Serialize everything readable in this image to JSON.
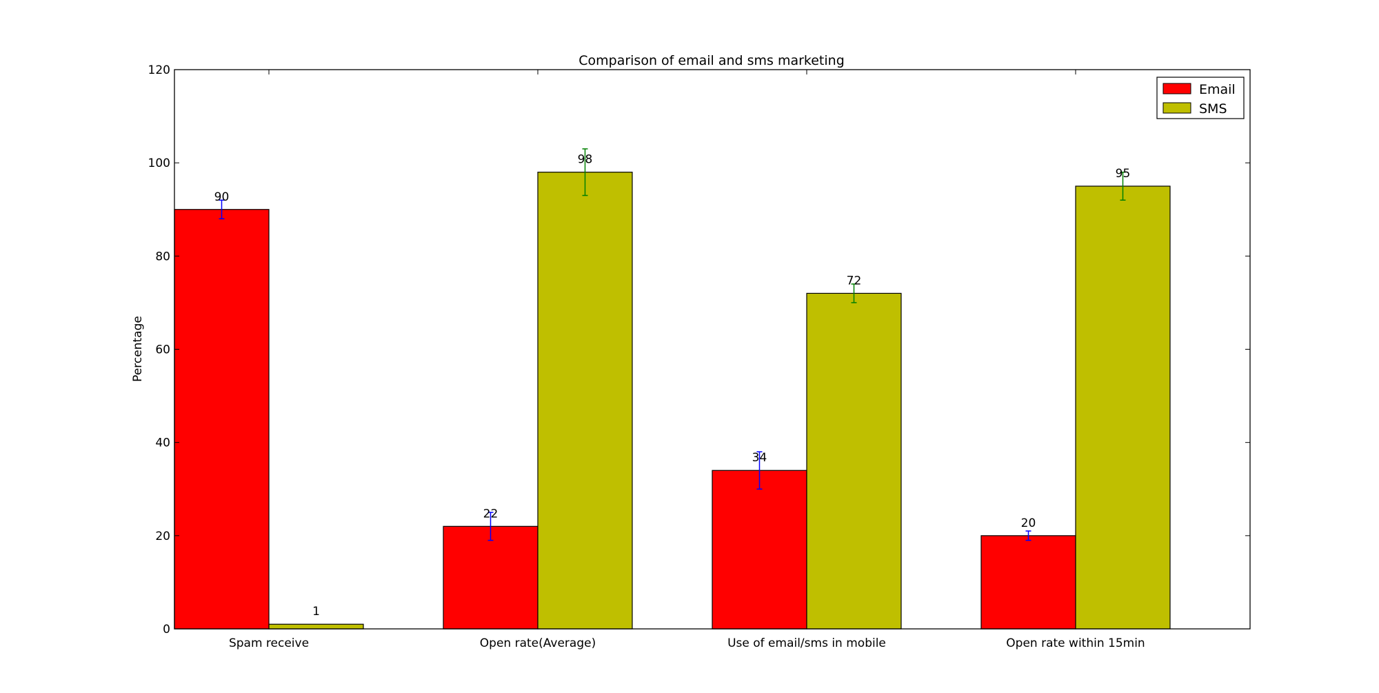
{
  "chart_data": {
    "type": "bar",
    "title": "Comparison of email and sms marketing",
    "xlabel": "",
    "ylabel": "Percentage",
    "ylim": [
      0,
      120
    ],
    "yticks": [
      0,
      20,
      40,
      60,
      80,
      100,
      120
    ],
    "categories": [
      "Spam receive",
      "Open rate(Average)",
      "Use of email/sms in mobile",
      "Open rate within 15min"
    ],
    "series": [
      {
        "name": "Email",
        "values": [
          90,
          22,
          34,
          20
        ],
        "errors": [
          2,
          3,
          4,
          1
        ],
        "color": "#ff0000",
        "error_color": "#0000ff"
      },
      {
        "name": "SMS",
        "values": [
          1,
          98,
          72,
          95
        ],
        "errors": [
          0,
          5,
          2,
          3
        ],
        "color": "#bfbf00",
        "error_color": "#008000"
      }
    ],
    "legend": "top-right",
    "grid": false
  }
}
